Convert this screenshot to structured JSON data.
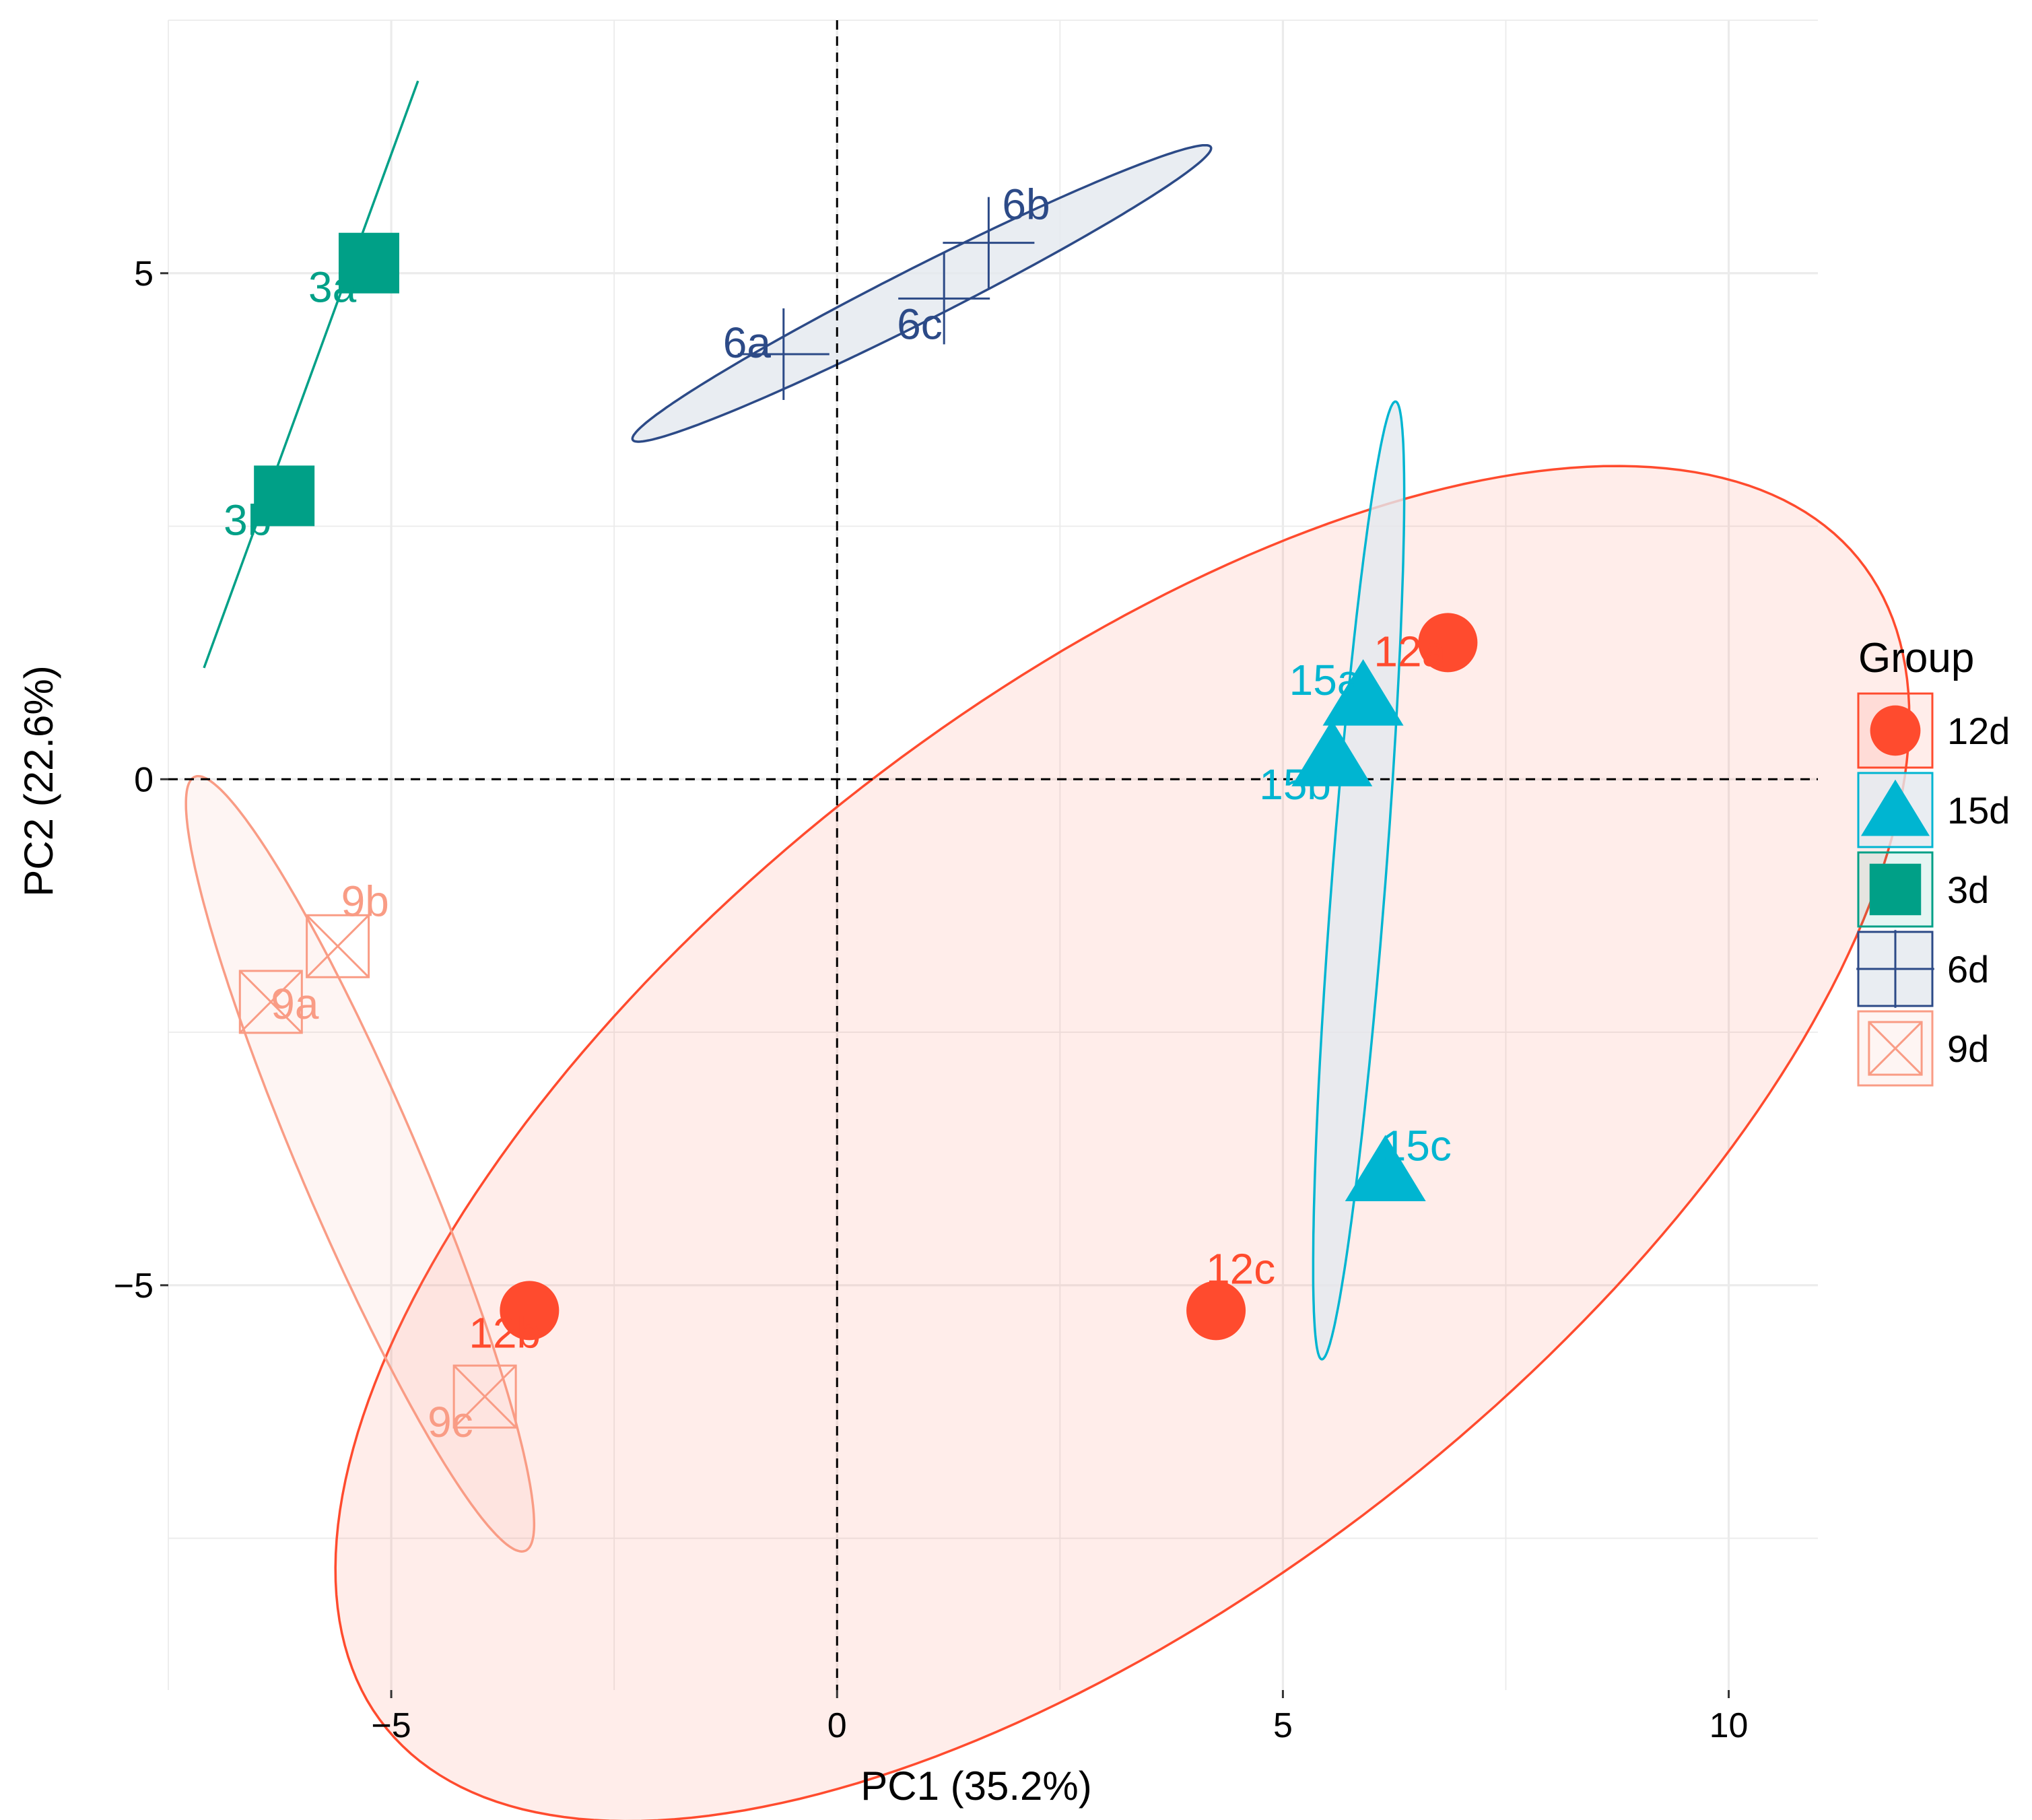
{
  "chart_data": {
    "type": "scatter",
    "title": "",
    "xlabel": "PC1 (35.2%)",
    "ylabel": "PC2 (22.6%)",
    "xlim": [
      -7.5,
      11
    ],
    "ylim": [
      -9.0,
      7.5
    ],
    "x_ticks": [
      -5,
      0,
      5,
      10
    ],
    "x_tick_labels": [
      "−5",
      "0",
      "5",
      "10"
    ],
    "y_ticks": [
      -5,
      0,
      5
    ],
    "y_tick_labels": [
      "−5",
      "0",
      "5"
    ],
    "grid": true,
    "reference_lines": [
      {
        "axis": "x",
        "value": 0,
        "style": "dashed"
      },
      {
        "axis": "y",
        "value": 0,
        "style": "dashed"
      }
    ],
    "legend": {
      "title": "Group",
      "placement": "right"
    },
    "series": [
      {
        "name": "12d",
        "marker": "circle",
        "color": "#FF4B2E",
        "points": [
          {
            "label": "12a",
            "x": 6.85,
            "y": 1.35
          },
          {
            "label": "12b",
            "x": -3.45,
            "y": -5.25
          },
          {
            "label": "12c",
            "x": 4.25,
            "y": -5.25
          }
        ],
        "ellipse": {
          "cx": 3.2,
          "cy": -3.6,
          "rx": 10.1,
          "ry": 4.55,
          "angle": 33
        }
      },
      {
        "name": "15d",
        "marker": "triangle",
        "color": "#00B5D1",
        "points": [
          {
            "label": "15a",
            "x": 5.9,
            "y": 0.8
          },
          {
            "label": "15b",
            "x": 5.55,
            "y": 0.2
          },
          {
            "label": "15c",
            "x": 6.15,
            "y": -3.9
          }
        ],
        "ellipse": {
          "cx": 5.85,
          "cy": -1.0,
          "rx": 4.75,
          "ry": 0.3,
          "angle": 85
        }
      },
      {
        "name": "3d",
        "marker": "square",
        "color": "#00A087",
        "points": [
          {
            "label": "3a",
            "x": -5.25,
            "y": 5.1
          },
          {
            "label": "3b",
            "x": -6.2,
            "y": 2.8
          }
        ],
        "segment": {
          "x1": -7.1,
          "y1": 1.1,
          "x2": -4.7,
          "y2": 6.9
        }
      },
      {
        "name": "6d",
        "marker": "plus",
        "color": "#2C4A87",
        "points": [
          {
            "label": "6a",
            "x": -0.6,
            "y": 4.2
          },
          {
            "label": "6b",
            "x": 1.7,
            "y": 5.3
          },
          {
            "label": "6c",
            "x": 1.2,
            "y": 4.75
          }
        ],
        "ellipse": {
          "cx": 0.95,
          "cy": 4.8,
          "rx": 3.55,
          "ry": 0.27,
          "angle": 24
        }
      },
      {
        "name": "9d",
        "marker": "boxx",
        "color": "#F99C85",
        "points": [
          {
            "label": "9a",
            "x": -6.35,
            "y": -2.2
          },
          {
            "label": "9b",
            "x": -5.6,
            "y": -1.65
          },
          {
            "label": "9c",
            "x": -3.95,
            "y": -6.1
          }
        ],
        "ellipse": {
          "cx": -5.35,
          "cy": -3.8,
          "rx": 4.25,
          "ry": 0.65,
          "angle": -64
        }
      }
    ]
  }
}
